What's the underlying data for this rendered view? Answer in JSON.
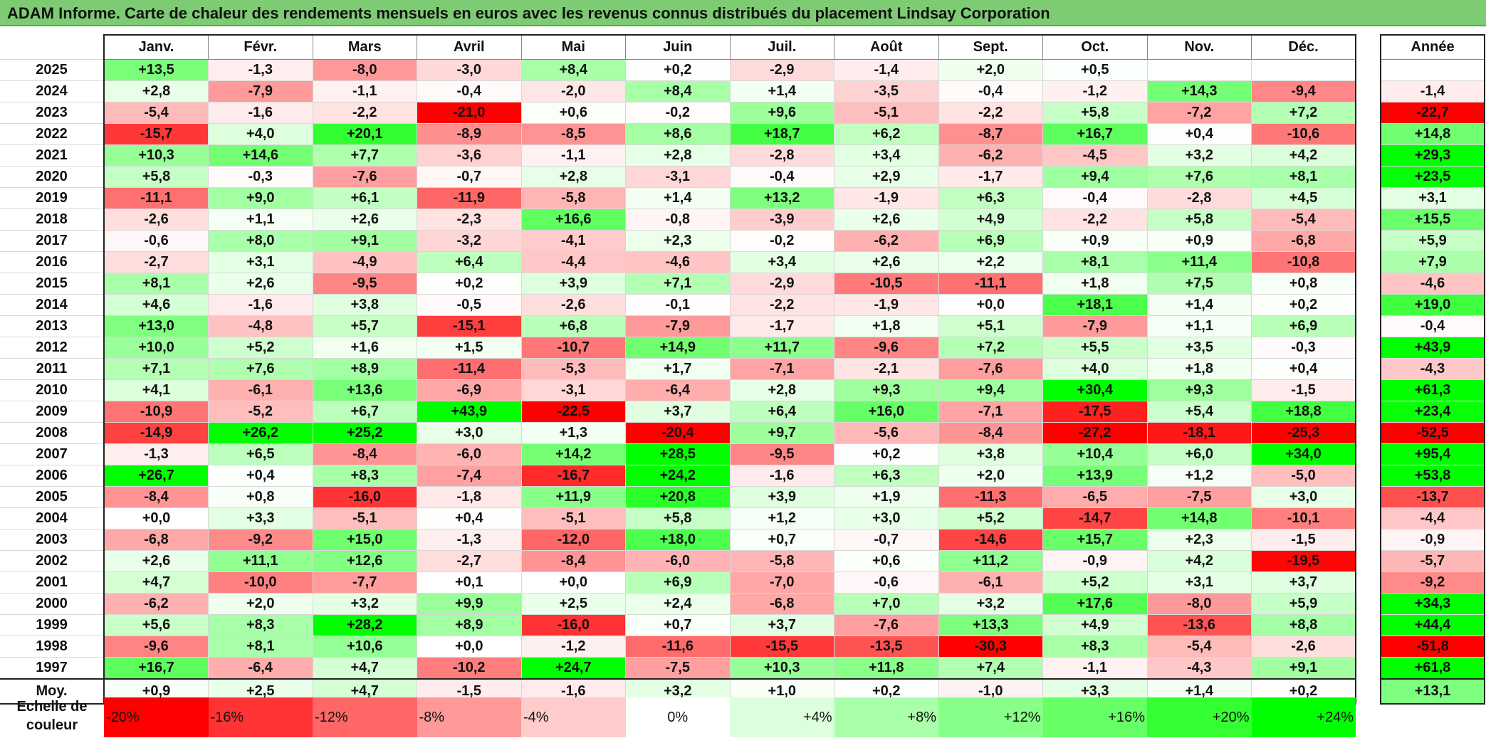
{
  "title": "ADAM Informe. Carte de chaleur des rendements mensuels en euros avec les revenus connus distribués du placement Lindsay Corporation",
  "chart_data": {
    "type": "heatmap",
    "title": "ADAM Informe. Carte de chaleur des rendements mensuels en euros avec les revenus connus distribués du placement Lindsay Corporation",
    "columns": [
      "Janv.",
      "Févr.",
      "Mars",
      "Avril",
      "Mai",
      "Juin",
      "Juil.",
      "Août",
      "Sept.",
      "Oct.",
      "Nov.",
      "Déc."
    ],
    "year_column": "Année",
    "rows": [
      {
        "year": "2025",
        "values": [
          "+13,5",
          "-1,3",
          "-8,0",
          "-3,0",
          "+8,4",
          "+0,2",
          "-2,9",
          "-1,4",
          "+2,0",
          "+0,5",
          "",
          ""
        ],
        "annual": ""
      },
      {
        "year": "2024",
        "values": [
          "+2,8",
          "-7,9",
          "-1,1",
          "-0,4",
          "-2,0",
          "+8,4",
          "+1,4",
          "-3,5",
          "-0,4",
          "-1,2",
          "+14,3",
          "-9,4"
        ],
        "annual": "-1,4"
      },
      {
        "year": "2023",
        "values": [
          "-5,4",
          "-1,6",
          "-2,2",
          "-21,0",
          "+0,6",
          "-0,2",
          "+9,6",
          "-5,1",
          "-2,2",
          "+5,8",
          "-7,2",
          "+7,2"
        ],
        "annual": "-22,7"
      },
      {
        "year": "2022",
        "values": [
          "-15,7",
          "+4,0",
          "+20,1",
          "-8,9",
          "-8,5",
          "+8,6",
          "+18,7",
          "+6,2",
          "-8,7",
          "+16,7",
          "+0,4",
          "-10,6"
        ],
        "annual": "+14,8"
      },
      {
        "year": "2021",
        "values": [
          "+10,3",
          "+14,6",
          "+7,7",
          "-3,6",
          "-1,1",
          "+2,8",
          "-2,8",
          "+3,4",
          "-6,2",
          "-4,5",
          "+3,2",
          "+4,2"
        ],
        "annual": "+29,3"
      },
      {
        "year": "2020",
        "values": [
          "+5,8",
          "-0,3",
          "-7,6",
          "-0,7",
          "+2,8",
          "-3,1",
          "-0,4",
          "+2,9",
          "-1,7",
          "+9,4",
          "+7,6",
          "+8,1"
        ],
        "annual": "+23,5"
      },
      {
        "year": "2019",
        "values": [
          "-11,1",
          "+9,0",
          "+6,1",
          "-11,9",
          "-5,8",
          "+1,4",
          "+13,2",
          "-1,9",
          "+6,3",
          "-0,4",
          "-2,8",
          "+4,5"
        ],
        "annual": "+3,1"
      },
      {
        "year": "2018",
        "values": [
          "-2,6",
          "+1,1",
          "+2,6",
          "-2,3",
          "+16,6",
          "-0,8",
          "-3,9",
          "+2,6",
          "+4,9",
          "-2,2",
          "+5,8",
          "-5,4"
        ],
        "annual": "+15,5"
      },
      {
        "year": "2017",
        "values": [
          "-0,6",
          "+8,0",
          "+9,1",
          "-3,2",
          "-4,1",
          "+2,3",
          "-0,2",
          "-6,2",
          "+6,9",
          "+0,9",
          "+0,9",
          "-6,8"
        ],
        "annual": "+5,9"
      },
      {
        "year": "2016",
        "values": [
          "-2,7",
          "+3,1",
          "-4,9",
          "+6,4",
          "-4,4",
          "-4,6",
          "+3,4",
          "+2,6",
          "+2,2",
          "+8,1",
          "+11,4",
          "-10,8"
        ],
        "annual": "+7,9"
      },
      {
        "year": "2015",
        "values": [
          "+8,1",
          "+2,6",
          "-9,5",
          "+0,2",
          "+3,9",
          "+7,1",
          "-2,9",
          "-10,5",
          "-11,1",
          "+1,8",
          "+7,5",
          "+0,8"
        ],
        "annual": "-4,6"
      },
      {
        "year": "2014",
        "values": [
          "+4,6",
          "-1,6",
          "+3,8",
          "-0,5",
          "-2,6",
          "-0,1",
          "-2,2",
          "-1,9",
          "+0,0",
          "+18,1",
          "+1,4",
          "+0,2"
        ],
        "annual": "+19,0"
      },
      {
        "year": "2013",
        "values": [
          "+13,0",
          "-4,8",
          "+5,7",
          "-15,1",
          "+6,8",
          "-7,9",
          "-1,7",
          "+1,8",
          "+5,1",
          "-7,9",
          "+1,1",
          "+6,9"
        ],
        "annual": "-0,4"
      },
      {
        "year": "2012",
        "values": [
          "+10,0",
          "+5,2",
          "+1,6",
          "+1,5",
          "-10,7",
          "+14,9",
          "+11,7",
          "-9,6",
          "+7,2",
          "+5,5",
          "+3,5",
          "-0,3"
        ],
        "annual": "+43,9"
      },
      {
        "year": "2011",
        "values": [
          "+7,1",
          "+7,6",
          "+8,9",
          "-11,4",
          "-5,3",
          "+1,7",
          "-7,1",
          "-2,1",
          "-7,6",
          "+4,0",
          "+1,8",
          "+0,4"
        ],
        "annual": "-4,3"
      },
      {
        "year": "2010",
        "values": [
          "+4,1",
          "-6,1",
          "+13,6",
          "-6,9",
          "-3,1",
          "-6,4",
          "+2,8",
          "+9,3",
          "+9,4",
          "+30,4",
          "+9,3",
          "-1,5"
        ],
        "annual": "+61,3"
      },
      {
        "year": "2009",
        "values": [
          "-10,9",
          "-5,2",
          "+6,7",
          "+43,9",
          "-22,5",
          "+3,7",
          "+6,4",
          "+16,0",
          "-7,1",
          "-17,5",
          "+5,4",
          "+18,8"
        ],
        "annual": "+23,4"
      },
      {
        "year": "2008",
        "values": [
          "-14,9",
          "+26,2",
          "+25,2",
          "+3,0",
          "+1,3",
          "-20,4",
          "+9,7",
          "-5,6",
          "-8,4",
          "-27,2",
          "-18,1",
          "-25,3"
        ],
        "annual": "-52,5"
      },
      {
        "year": "2007",
        "values": [
          "-1,3",
          "+6,5",
          "-8,4",
          "-6,0",
          "+14,2",
          "+28,5",
          "-9,5",
          "+0,2",
          "+3,8",
          "+10,4",
          "+6,0",
          "+34,0"
        ],
        "annual": "+95,4"
      },
      {
        "year": "2006",
        "values": [
          "+26,7",
          "+0,4",
          "+8,3",
          "-7,4",
          "-16,7",
          "+24,2",
          "-1,6",
          "+6,3",
          "+2,0",
          "+13,9",
          "+1,2",
          "-5,0"
        ],
        "annual": "+53,8"
      },
      {
        "year": "2005",
        "values": [
          "-8,4",
          "+0,8",
          "-16,0",
          "-1,8",
          "+11,9",
          "+20,8",
          "+3,9",
          "+1,9",
          "-11,3",
          "-6,5",
          "-7,5",
          "+3,0"
        ],
        "annual": "-13,7"
      },
      {
        "year": "2004",
        "values": [
          "+0,0",
          "+3,3",
          "-5,1",
          "+0,4",
          "-5,1",
          "+5,8",
          "+1,2",
          "+3,0",
          "+5,2",
          "-14,7",
          "+14,8",
          "-10,1"
        ],
        "annual": "-4,4"
      },
      {
        "year": "2003",
        "values": [
          "-6,8",
          "-9,2",
          "+15,0",
          "-1,3",
          "-12,0",
          "+18,0",
          "+0,7",
          "-0,7",
          "-14,6",
          "+15,7",
          "+2,3",
          "-1,5"
        ],
        "annual": "-0,9"
      },
      {
        "year": "2002",
        "values": [
          "+2,6",
          "+11,1",
          "+12,6",
          "-2,7",
          "-8,4",
          "-6,0",
          "-5,8",
          "+0,6",
          "+11,2",
          "-0,9",
          "+4,2",
          "-19,5"
        ],
        "annual": "-5,7"
      },
      {
        "year": "2001",
        "values": [
          "+4,7",
          "-10,0",
          "-7,7",
          "+0,1",
          "+0,0",
          "+6,9",
          "-7,0",
          "-0,6",
          "-6,1",
          "+5,2",
          "+3,1",
          "+3,7"
        ],
        "annual": "-9,2"
      },
      {
        "year": "2000",
        "values": [
          "-6,2",
          "+2,0",
          "+3,2",
          "+9,9",
          "+2,5",
          "+2,4",
          "-6,8",
          "+7,0",
          "+3,2",
          "+17,6",
          "-8,0",
          "+5,9"
        ],
        "annual": "+34,3"
      },
      {
        "year": "1999",
        "values": [
          "+5,6",
          "+8,3",
          "+28,2",
          "+8,9",
          "-16,0",
          "+0,7",
          "+3,7",
          "-7,6",
          "+13,3",
          "+4,9",
          "-13,6",
          "+8,8"
        ],
        "annual": "+44,4"
      },
      {
        "year": "1998",
        "values": [
          "-9,6",
          "+8,1",
          "+10,6",
          "+0,0",
          "-1,2",
          "-11,6",
          "-15,5",
          "-13,5",
          "-30,3",
          "+8,3",
          "-5,4",
          "-2,6"
        ],
        "annual": "-51,8"
      },
      {
        "year": "1997",
        "values": [
          "+16,7",
          "-6,4",
          "+4,7",
          "-10,2",
          "+24,7",
          "-7,5",
          "+10,3",
          "+11,8",
          "+7,4",
          "-1,1",
          "-4,3",
          "+9,1"
        ],
        "annual": "+61,8"
      }
    ],
    "average": {
      "label": "Moy.",
      "values": [
        "+0,9",
        "+2,5",
        "+4,7",
        "-1,5",
        "-1,6",
        "+3,2",
        "+1,0",
        "+0,2",
        "-1,0",
        "+3,3",
        "+1,4",
        "+0,2"
      ],
      "annual": "+13,1"
    },
    "color_scale": {
      "label_line1": "Echelle de",
      "label_line2": "couleur",
      "stops": [
        {
          "label": "-20%",
          "value": -20,
          "color": "#ff0000"
        },
        {
          "label": "-16%",
          "value": -16,
          "color": "#ff3333"
        },
        {
          "label": "-12%",
          "value": -12,
          "color": "#ff6666"
        },
        {
          "label": "-8%",
          "value": -8,
          "color": "#ff9999"
        },
        {
          "label": "-4%",
          "value": -4,
          "color": "#ffcccc"
        },
        {
          "label": "0%",
          "value": 0,
          "color": "#ffffff"
        },
        {
          "label": "+4%",
          "value": 4,
          "color": "#ddffdd"
        },
        {
          "label": "+8%",
          "value": 8,
          "color": "#aaffaa"
        },
        {
          "label": "+12%",
          "value": 12,
          "color": "#88ff88"
        },
        {
          "label": "+16%",
          "value": 16,
          "color": "#66ff66"
        },
        {
          "label": "+20%",
          "value": 20,
          "color": "#33ff33"
        },
        {
          "label": "+24%",
          "value": 24,
          "color": "#00ff00"
        }
      ]
    }
  }
}
